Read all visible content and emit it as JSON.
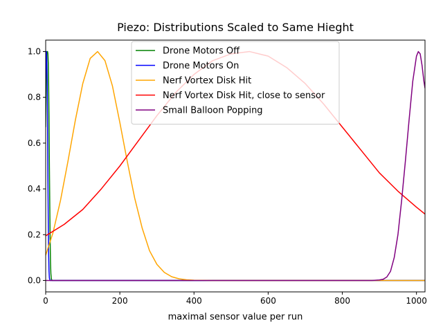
{
  "chart_data": {
    "type": "line",
    "title": "Piezo: Distributions Scaled to Same Hieght",
    "xlabel": "maximal sensor value per run",
    "ylabel": "",
    "xlim": [
      0,
      1023
    ],
    "ylim": [
      -0.05,
      1.05
    ],
    "x_ticks": [
      0,
      200,
      400,
      600,
      800,
      1000
    ],
    "y_ticks": [
      0.0,
      0.2,
      0.4,
      0.6,
      0.8,
      1.0
    ],
    "x_tick_labels": [
      "0",
      "200",
      "400",
      "600",
      "800",
      "1000"
    ],
    "y_tick_labels": [
      "0.0",
      "0.2",
      "0.4",
      "0.6",
      "0.8",
      "1.0"
    ],
    "grid": false,
    "legend_position": "top-center",
    "series": [
      {
        "name": "Drone Motors Off",
        "color": "#008000",
        "x": [
          0,
          1,
          2,
          3,
          4,
          5,
          6,
          7,
          8,
          9,
          10,
          11,
          12,
          13,
          14,
          15,
          16,
          18,
          20,
          1023
        ],
        "y": [
          0.67,
          0.85,
          0.95,
          0.995,
          1.0,
          1.0,
          0.99,
          0.95,
          0.85,
          0.7,
          0.5,
          0.33,
          0.18,
          0.08,
          0.03,
          0.01,
          0.003,
          0.0,
          0.0,
          0.0
        ]
      },
      {
        "name": "Drone Motors On",
        "color": "#0000ff",
        "x": [
          0,
          1,
          2,
          3,
          4,
          5,
          6,
          7,
          8,
          9,
          10,
          12,
          1023
        ],
        "y": [
          0.88,
          0.97,
          1.0,
          0.97,
          0.87,
          0.68,
          0.45,
          0.25,
          0.11,
          0.04,
          0.01,
          0.0,
          0.0
        ]
      },
      {
        "name": "Nerf Vortex Disk Hit",
        "color": "#ffa500",
        "x": [
          0,
          20,
          40,
          60,
          80,
          100,
          120,
          140,
          160,
          180,
          200,
          220,
          240,
          260,
          280,
          300,
          320,
          340,
          360,
          380,
          400,
          450,
          500,
          1023
        ],
        "y": [
          0.11,
          0.21,
          0.35,
          0.52,
          0.7,
          0.86,
          0.97,
          1.0,
          0.96,
          0.85,
          0.69,
          0.52,
          0.36,
          0.23,
          0.13,
          0.07,
          0.035,
          0.016,
          0.007,
          0.003,
          0.001,
          0.0,
          0.0,
          0.0
        ]
      },
      {
        "name": "Nerf Vortex Disk Hit, close to sensor",
        "color": "#ff0000",
        "x": [
          0,
          50,
          100,
          150,
          200,
          250,
          300,
          350,
          400,
          450,
          500,
          550,
          600,
          650,
          700,
          750,
          800,
          850,
          900,
          950,
          1000,
          1023
        ],
        "y": [
          0.195,
          0.245,
          0.31,
          0.4,
          0.5,
          0.61,
          0.72,
          0.82,
          0.9,
          0.96,
          0.99,
          1.0,
          0.98,
          0.93,
          0.86,
          0.77,
          0.67,
          0.57,
          0.47,
          0.39,
          0.32,
          0.29
        ]
      },
      {
        "name": "Small Balloon Popping",
        "color": "#800080",
        "x": [
          0,
          880,
          900,
          910,
          920,
          930,
          940,
          950,
          960,
          970,
          980,
          990,
          1000,
          1005,
          1010,
          1015,
          1020,
          1023
        ],
        "y": [
          0.0,
          0.0,
          0.002,
          0.005,
          0.015,
          0.04,
          0.1,
          0.2,
          0.35,
          0.52,
          0.7,
          0.87,
          0.98,
          1.0,
          0.99,
          0.94,
          0.87,
          0.84
        ]
      }
    ]
  }
}
